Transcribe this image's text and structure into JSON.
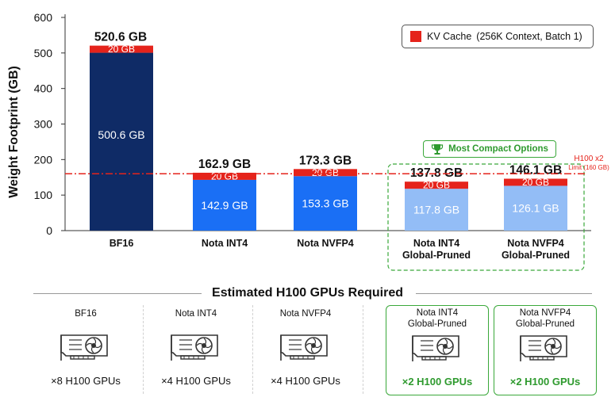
{
  "chart_data": {
    "type": "bar",
    "stacked": true,
    "ylabel": "Weight Footprint (GB)",
    "ylim": [
      0,
      600
    ],
    "yticks": [
      0,
      100,
      200,
      300,
      400,
      500,
      600
    ],
    "categories": [
      "BF16",
      "Nota INT4",
      "Nota NVFP4",
      "Nota INT4\nGlobal-Pruned",
      "Nota NVFP4\nGlobal-Pruned"
    ],
    "series": [
      {
        "name": "",
        "values": [
          500.6,
          142.9,
          153.3,
          117.8,
          126.1
        ],
        "colors": [
          "#0f2b66",
          "#1a6ff5",
          "#1a6ff5",
          "#93bdf6",
          "#93bdf6"
        ],
        "labels": [
          "500.6 GB",
          "142.9 GB",
          "153.3 GB",
          "117.8 GB",
          "126.1 GB"
        ]
      },
      {
        "name": "KV Cache",
        "values": [
          20,
          20,
          20,
          20,
          20
        ],
        "color": "#e5231b",
        "labels": [
          "20 GB",
          "20 GB",
          "20 GB",
          "20 GB",
          "20 GB"
        ]
      }
    ],
    "totals": [
      "520.6 GB",
      "162.9 GB",
      "173.3 GB",
      "137.8 GB",
      "146.1 GB"
    ],
    "reference_line": {
      "value": 160,
      "color": "#e5231b"
    },
    "grid": false,
    "legend_position": "top-right"
  },
  "legend": {
    "label": "KV Cache",
    "note": "(256K Context, Batch 1)"
  },
  "compact_label": "Most Compact Options",
  "limit_label": {
    "line1": "H100 x2",
    "line2": "Limit (160 GB)"
  },
  "gpu_section": {
    "title": "Estimated H100 GPUs Required",
    "cards": [
      {
        "name": "BF16",
        "count": "×8 H100 GPUs",
        "highlight": false
      },
      {
        "name": "Nota INT4",
        "count": "×4 H100 GPUs",
        "highlight": false
      },
      {
        "name": "Nota NVFP4",
        "count": "×4 H100 GPUs",
        "highlight": false
      },
      {
        "name": "Nota INT4\nGlobal-Pruned",
        "count": "×2 H100 GPUs",
        "highlight": true
      },
      {
        "name": "Nota NVFP4\nGlobal-Pruned",
        "count": "×2 H100 GPUs",
        "highlight": true
      }
    ]
  },
  "colors": {
    "accent_green": "#2e9a2e",
    "kv_red": "#e5231b"
  },
  "icons": {
    "trophy": "trophy-icon",
    "gpu": "gpu-card-icon"
  }
}
